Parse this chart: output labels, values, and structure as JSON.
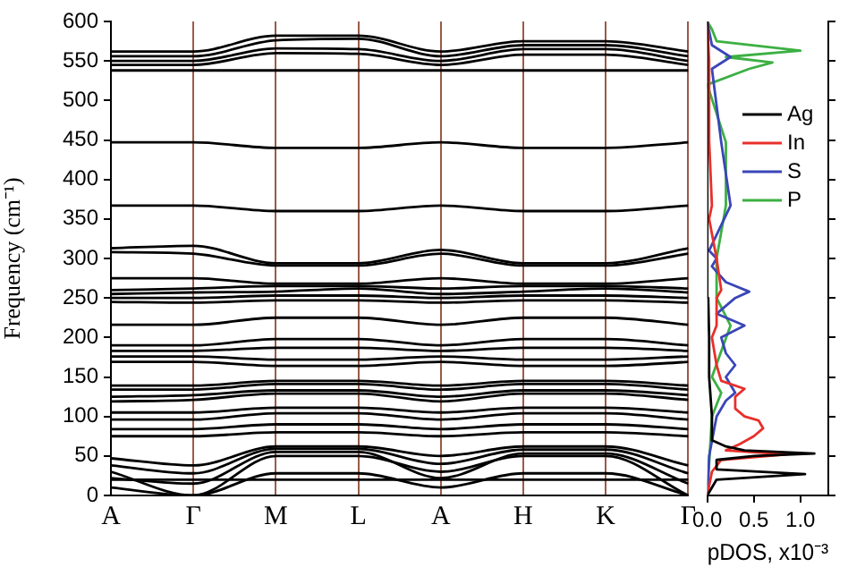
{
  "chart_data": [
    {
      "type": "line",
      "ylabel": "Frequency (cm⁻¹)",
      "color": "#000000",
      "grid": "x",
      "legend": false,
      "marker": "none",
      "line_style": "solid",
      "categories": [
        "A",
        "Γ",
        "M",
        "L",
        "A",
        "H",
        "K",
        "Γ"
      ],
      "ylim": [
        0,
        600
      ],
      "yticks": [
        0,
        50,
        100,
        150,
        200,
        250,
        300,
        350,
        400,
        450,
        500,
        550,
        600
      ],
      "series": [
        {
          "values": [
            562,
            562,
            582,
            582,
            562,
            575,
            575,
            562
          ]
        },
        {
          "values": [
            556,
            556,
            576,
            578,
            556,
            570,
            570,
            556
          ]
        },
        {
          "values": [
            550,
            550,
            566,
            565,
            550,
            565,
            565,
            550
          ]
        },
        {
          "values": [
            545,
            545,
            560,
            559,
            545,
            558,
            558,
            545
          ]
        },
        {
          "values": [
            538,
            538,
            538,
            538,
            538,
            538,
            538,
            538
          ]
        },
        {
          "values": [
            447,
            447,
            440,
            440,
            447,
            440,
            440,
            447
          ]
        },
        {
          "values": [
            367,
            367,
            360,
            360,
            367,
            360,
            360,
            367
          ]
        },
        {
          "values": [
            313,
            316,
            294,
            294,
            311,
            294,
            294,
            313
          ]
        },
        {
          "values": [
            308,
            306,
            291,
            291,
            306,
            291,
            291,
            306
          ]
        },
        {
          "values": [
            275,
            275,
            268,
            268,
            275,
            268,
            268,
            275
          ]
        },
        {
          "values": [
            260,
            262,
            265,
            265,
            262,
            265,
            265,
            262
          ]
        },
        {
          "values": [
            255,
            257,
            258,
            262,
            255,
            258,
            262,
            257
          ]
        },
        {
          "values": [
            250,
            250,
            253,
            253,
            250,
            253,
            253,
            250
          ]
        },
        {
          "values": [
            245,
            244,
            247,
            247,
            244,
            247,
            247,
            244
          ]
        },
        {
          "values": [
            216,
            216,
            225,
            225,
            216,
            225,
            225,
            216
          ]
        },
        {
          "values": [
            190,
            190,
            198,
            198,
            190,
            198,
            198,
            190
          ]
        },
        {
          "values": [
            183,
            183,
            187,
            187,
            183,
            187,
            187,
            183
          ]
        },
        {
          "values": [
            176,
            176,
            172,
            172,
            176,
            172,
            172,
            176
          ]
        },
        {
          "values": [
            169,
            169,
            164,
            164,
            169,
            164,
            164,
            169
          ]
        },
        {
          "values": [
            139,
            139,
            145,
            145,
            139,
            145,
            145,
            139
          ]
        },
        {
          "values": [
            134,
            134,
            141,
            141,
            134,
            141,
            141,
            134
          ]
        },
        {
          "values": [
            125,
            127,
            133,
            133,
            125,
            133,
            133,
            127
          ]
        },
        {
          "values": [
            119,
            121,
            129,
            129,
            119,
            129,
            129,
            121
          ]
        },
        {
          "values": [
            105,
            105,
            111,
            111,
            105,
            111,
            111,
            105
          ]
        },
        {
          "values": [
            96,
            96,
            104,
            104,
            96,
            104,
            104,
            96
          ]
        },
        {
          "values": [
            84,
            84,
            90,
            90,
            84,
            90,
            90,
            84
          ]
        },
        {
          "values": [
            75,
            75,
            80,
            80,
            75,
            80,
            80,
            75
          ]
        },
        {
          "values": [
            47,
            38,
            62,
            62,
            50,
            62,
            62,
            38
          ]
        },
        {
          "values": [
            38,
            28,
            59,
            59,
            40,
            58,
            58,
            28
          ]
        },
        {
          "values": [
            22,
            15,
            55,
            55,
            22,
            53,
            53,
            15
          ]
        },
        {
          "values": [
            10,
            0,
            28,
            28,
            10,
            28,
            28,
            0
          ]
        },
        {
          "values": [
            20,
            20,
            20,
            20,
            20,
            20,
            20,
            20
          ]
        },
        {
          "values": [
            30,
            0,
            50,
            50,
            30,
            50,
            50,
            0
          ]
        }
      ]
    },
    {
      "type": "line",
      "orientation": "horizontal",
      "xlabel": "pDOS, x10⁻³",
      "legend": "top right",
      "grid": false,
      "marker": "none",
      "line_style": "solid",
      "tick_labels": "x",
      "xlim": [
        0,
        1.3
      ],
      "xticks": [
        {
          "value": 0,
          "label": "0.0"
        },
        {
          "value": 0.5,
          "label": "0.5"
        },
        {
          "value": 1,
          "label": "1.0"
        }
      ],
      "ylim": [
        0,
        600
      ],
      "yticks": [
        {
          "value": 0,
          "label": null
        },
        {
          "value": 50,
          "label": null
        },
        {
          "value": 100,
          "label": null
        },
        {
          "value": 150,
          "label": null
        },
        {
          "value": 200,
          "label": null
        },
        {
          "value": 250,
          "label": null
        },
        {
          "value": 300,
          "label": null
        },
        {
          "value": 350,
          "label": null
        },
        {
          "value": 400,
          "label": null
        },
        {
          "value": 450,
          "label": null
        },
        {
          "value": 500,
          "label": null
        },
        {
          "value": 550,
          "label": null
        },
        {
          "value": 600,
          "label": null
        }
      ],
      "series": [
        {
          "name": "Ag",
          "color": "#000000",
          "x": [
            0,
            20,
            27,
            33,
            45,
            50,
            53,
            57,
            62,
            70,
            80,
            100,
            150,
            200,
            250,
            300,
            600
          ],
          "values": [
            0,
            0.1,
            1.05,
            0.1,
            0.1,
            0.5,
            1.15,
            0.4,
            0.2,
            0.05,
            0.05,
            0.05,
            0.02,
            0.02,
            0.01,
            0,
            0
          ]
        },
        {
          "name": "In",
          "color": "#e8302a",
          "x": [
            0,
            30,
            45,
            52,
            57,
            65,
            75,
            85,
            95,
            100,
            110,
            125,
            135,
            145,
            165,
            200,
            215,
            250,
            260,
            300,
            350,
            367,
            450,
            550,
            600
          ],
          "values": [
            0,
            0.05,
            0.15,
            0.85,
            0.2,
            0.35,
            0.5,
            0.6,
            0.55,
            0.4,
            0.3,
            0.3,
            0.4,
            0.15,
            0.1,
            0.05,
            0.1,
            0.1,
            0.15,
            0.1,
            0.02,
            0.05,
            0.02,
            0.02,
            0
          ]
        },
        {
          "name": "S",
          "color": "#3a46b8",
          "x": [
            0,
            50,
            100,
            120,
            130,
            150,
            165,
            180,
            200,
            215,
            230,
            250,
            258,
            270,
            290,
            300,
            310,
            367,
            447,
            540,
            555,
            570,
            600
          ],
          "values": [
            0,
            0.02,
            0.1,
            0.2,
            0.3,
            0.2,
            0.3,
            0.2,
            0.15,
            0.4,
            0.1,
            0.3,
            0.45,
            0.2,
            0.05,
            0.1,
            0.02,
            0.25,
            0.15,
            0.05,
            0.25,
            0.05,
            0
          ]
        },
        {
          "name": "P",
          "color": "#3cb043",
          "x": [
            0,
            100,
            130,
            150,
            215,
            250,
            270,
            300,
            367,
            447,
            520,
            540,
            548,
            555,
            563,
            575,
            590,
            600
          ],
          "values": [
            0,
            0.05,
            0.15,
            0.05,
            0.25,
            0.1,
            0.1,
            0.1,
            0.2,
            0.2,
            0,
            0.45,
            0.7,
            0.2,
            1.0,
            0.1,
            0.05,
            0
          ]
        }
      ]
    }
  ]
}
